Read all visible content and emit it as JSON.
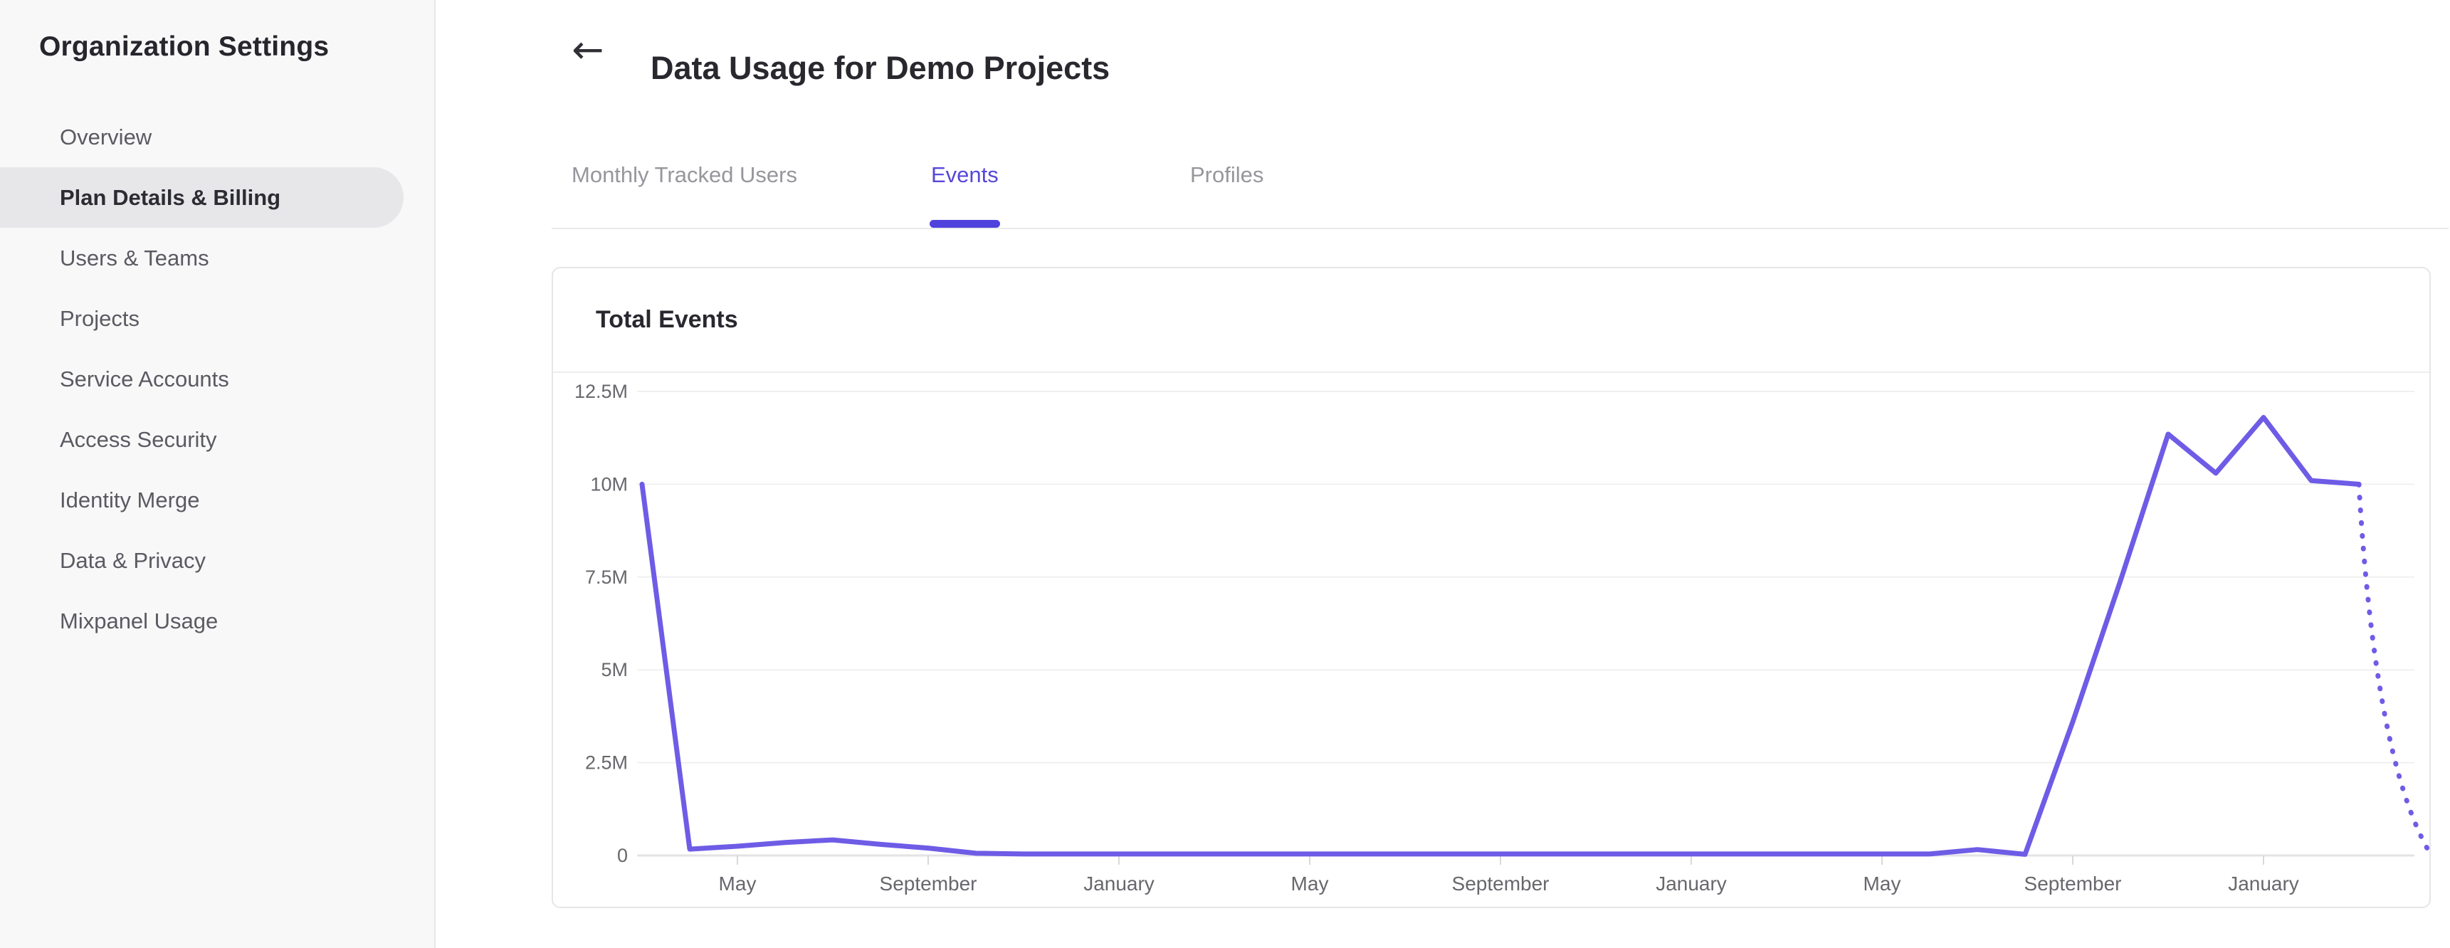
{
  "sidebar": {
    "title": "Organization Settings",
    "items": [
      {
        "label": "Overview",
        "selected": false
      },
      {
        "label": "Plan Details & Billing",
        "selected": true
      },
      {
        "label": "Users & Teams",
        "selected": false
      },
      {
        "label": "Projects",
        "selected": false
      },
      {
        "label": "Service Accounts",
        "selected": false
      },
      {
        "label": "Access Security",
        "selected": false
      },
      {
        "label": "Identity Merge",
        "selected": false
      },
      {
        "label": "Data & Privacy",
        "selected": false
      },
      {
        "label": "Mixpanel Usage",
        "selected": false
      }
    ]
  },
  "header": {
    "back_icon": "←",
    "title": "Data Usage for Demo Projects"
  },
  "tabs": {
    "items": [
      {
        "label": "Monthly Tracked Users",
        "active": false
      },
      {
        "label": "Events",
        "active": true
      },
      {
        "label": "Profiles",
        "active": false
      }
    ],
    "active_color": "#5748d8"
  },
  "usage_card": {
    "title": "Total Events"
  },
  "chart_data": {
    "type": "line",
    "title": "Total Events",
    "xlabel": "",
    "ylabel": "",
    "ylim": [
      0,
      12500000
    ],
    "grid": true,
    "legend": false,
    "line_color": "#6e5ce6",
    "y_ticks": [
      {
        "value": 12500000,
        "label": "12.5M"
      },
      {
        "value": 10000000,
        "label": "10M"
      },
      {
        "value": 7500000,
        "label": "7.5M"
      },
      {
        "value": 5000000,
        "label": "5M"
      },
      {
        "value": 2500000,
        "label": "2.5M"
      },
      {
        "value": 0,
        "label": "0"
      }
    ],
    "x_ticks": [
      {
        "month": 2,
        "label": "May"
      },
      {
        "month": 6,
        "label": "September"
      },
      {
        "month": 10,
        "label": "January"
      },
      {
        "month": 14,
        "label": "May"
      },
      {
        "month": 18,
        "label": "September"
      },
      {
        "month": 22,
        "label": "January"
      },
      {
        "month": 26,
        "label": "May"
      },
      {
        "month": 30,
        "label": "September"
      },
      {
        "month": 34,
        "label": "January"
      }
    ],
    "series": [
      {
        "name": "Total Events",
        "values": [
          10000000,
          170000,
          250000,
          350000,
          420000,
          300000,
          200000,
          60000,
          40000,
          40000,
          40000,
          40000,
          40000,
          40000,
          40000,
          40000,
          40000,
          40000,
          40000,
          40000,
          40000,
          40000,
          40000,
          40000,
          40000,
          40000,
          40000,
          40000,
          160000,
          30000,
          3600000,
          7400000,
          11350000,
          10300000,
          11800000,
          10100000,
          10000000
        ]
      }
    ],
    "projection": {
      "style": "dotted",
      "from_month": 36,
      "to_month": 37.45,
      "to_value": 150000
    }
  }
}
